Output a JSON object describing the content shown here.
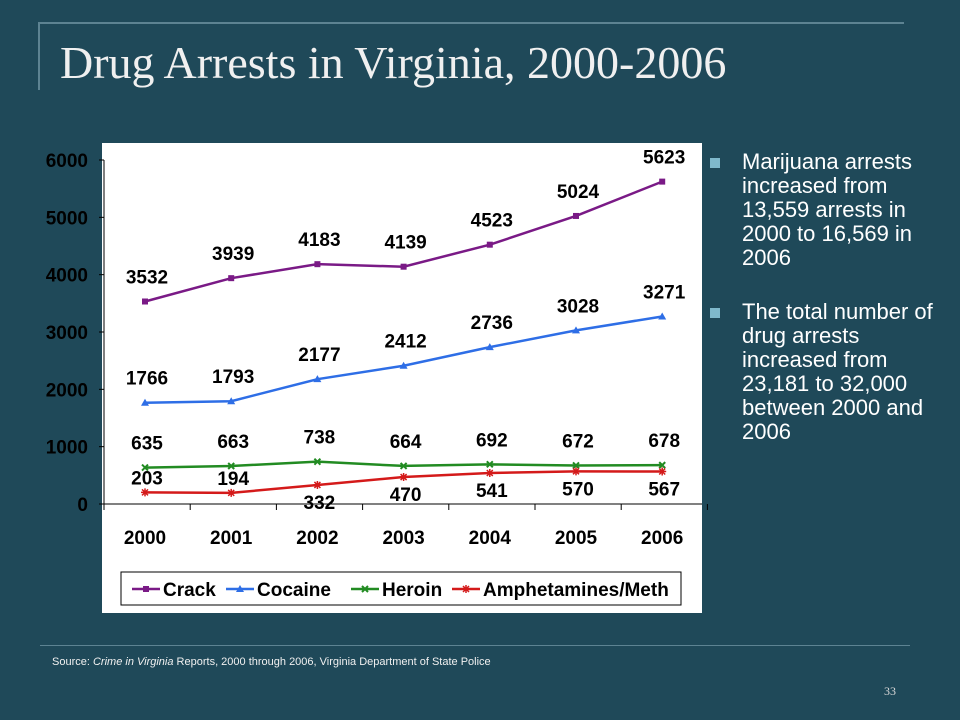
{
  "slide": {
    "title": "Drug Arrests in Virginia, 2000-2006",
    "bullets": [
      "Marijuana arrests increased from 13,559 arrests in 2000 to 16,569 in 2006",
      "The total number of drug arrests increased from 23,181 to 32,000 between 2000 and 2006"
    ],
    "source_prefix": "Source:",
    "source_italic": "Crime in Virginia",
    "source_rest": "Reports, 2000 through 2006, Virginia Department of State Police",
    "page_number": "33",
    "colors": {
      "background": "#1f4959",
      "text": "#ffffff",
      "bullet": "#7fb9cc",
      "plot_bg": "#ffffff"
    }
  },
  "chart_data": {
    "type": "line",
    "categories": [
      "2000",
      "2001",
      "2002",
      "2003",
      "2004",
      "2005",
      "2006"
    ],
    "ylim": [
      0,
      6000
    ],
    "yticks": [
      0,
      1000,
      2000,
      3000,
      4000,
      5000,
      6000
    ],
    "grid": false,
    "legend_position": "bottom",
    "series": [
      {
        "name": "Crack",
        "color": "#7a1a86",
        "marker": "square",
        "values": [
          3532,
          3939,
          4183,
          4139,
          4523,
          5024,
          5623
        ]
      },
      {
        "name": "Cocaine",
        "color": "#2e6ee6",
        "marker": "triangle",
        "values": [
          1766,
          1793,
          2177,
          2412,
          2736,
          3028,
          3271
        ]
      },
      {
        "name": "Heroin",
        "color": "#228b22",
        "marker": "x",
        "values": [
          635,
          663,
          738,
          664,
          692,
          672,
          678
        ]
      },
      {
        "name": "Amphetamines/Meth",
        "color": "#d41a1a",
        "marker": "asterisk",
        "values": [
          203,
          194,
          332,
          470,
          541,
          570,
          567
        ]
      }
    ]
  }
}
